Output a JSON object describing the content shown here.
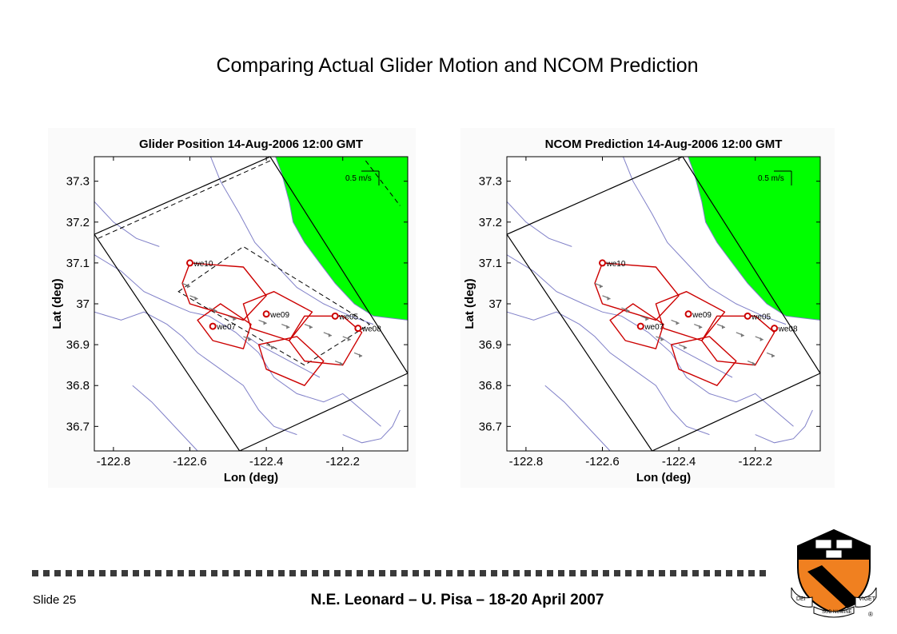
{
  "slide": {
    "title": "Comparing Actual Glider Motion and NCOM Prediction",
    "footer_left": "Slide 25",
    "footer_center": "N.E. Leonard – U. Pisa – 18-20 April 2007"
  },
  "colors": {
    "land": "#00ff00",
    "coast": "#8080c8",
    "track": "#cc0000",
    "arrow": "#777777",
    "frame": "#000000",
    "shield_orange": "#f08020",
    "shield_black": "#000000"
  },
  "chart_data": [
    {
      "type": "scatter",
      "title": "Glider Position 14-Aug-2006 12:00 GMT",
      "xlabel": "Lon (deg)",
      "ylabel": "Lat (deg)",
      "xlim": [
        -122.85,
        -122.03
      ],
      "ylim": [
        36.64,
        37.36
      ],
      "xticks": [
        -122.8,
        -122.6,
        -122.4,
        -122.2
      ],
      "yticks": [
        36.7,
        36.8,
        36.9,
        37.0,
        37.1,
        37.2,
        37.3
      ],
      "scale_label": "0.5 m/s",
      "gliders": [
        {
          "name": "we10",
          "x": -122.6,
          "y": 37.1
        },
        {
          "name": "we09",
          "x": -122.4,
          "y": 36.975
        },
        {
          "name": "we07",
          "x": -122.54,
          "y": 36.945
        },
        {
          "name": "we05",
          "x": -122.22,
          "y": 36.97
        },
        {
          "name": "we08",
          "x": -122.16,
          "y": 36.94
        }
      ]
    },
    {
      "type": "scatter",
      "title": "NCOM Prediction  14-Aug-2006 12:00 GMT",
      "xlabel": "Lon (deg)",
      "ylabel": "Lat (deg)",
      "xlim": [
        -122.85,
        -122.03
      ],
      "ylim": [
        36.64,
        37.36
      ],
      "xticks": [
        -122.8,
        -122.6,
        -122.4,
        -122.2
      ],
      "yticks": [
        36.7,
        36.8,
        36.9,
        37.0,
        37.1,
        37.2,
        37.3
      ],
      "scale_label": "0.5 m/s",
      "gliders": [
        {
          "name": "we10",
          "x": -122.6,
          "y": 37.1
        },
        {
          "name": "we09",
          "x": -122.375,
          "y": 36.975
        },
        {
          "name": "we07",
          "x": -122.5,
          "y": 36.945
        },
        {
          "name": "we05",
          "x": -122.22,
          "y": 36.97
        },
        {
          "name": "we08",
          "x": -122.15,
          "y": 36.94
        }
      ]
    }
  ]
}
